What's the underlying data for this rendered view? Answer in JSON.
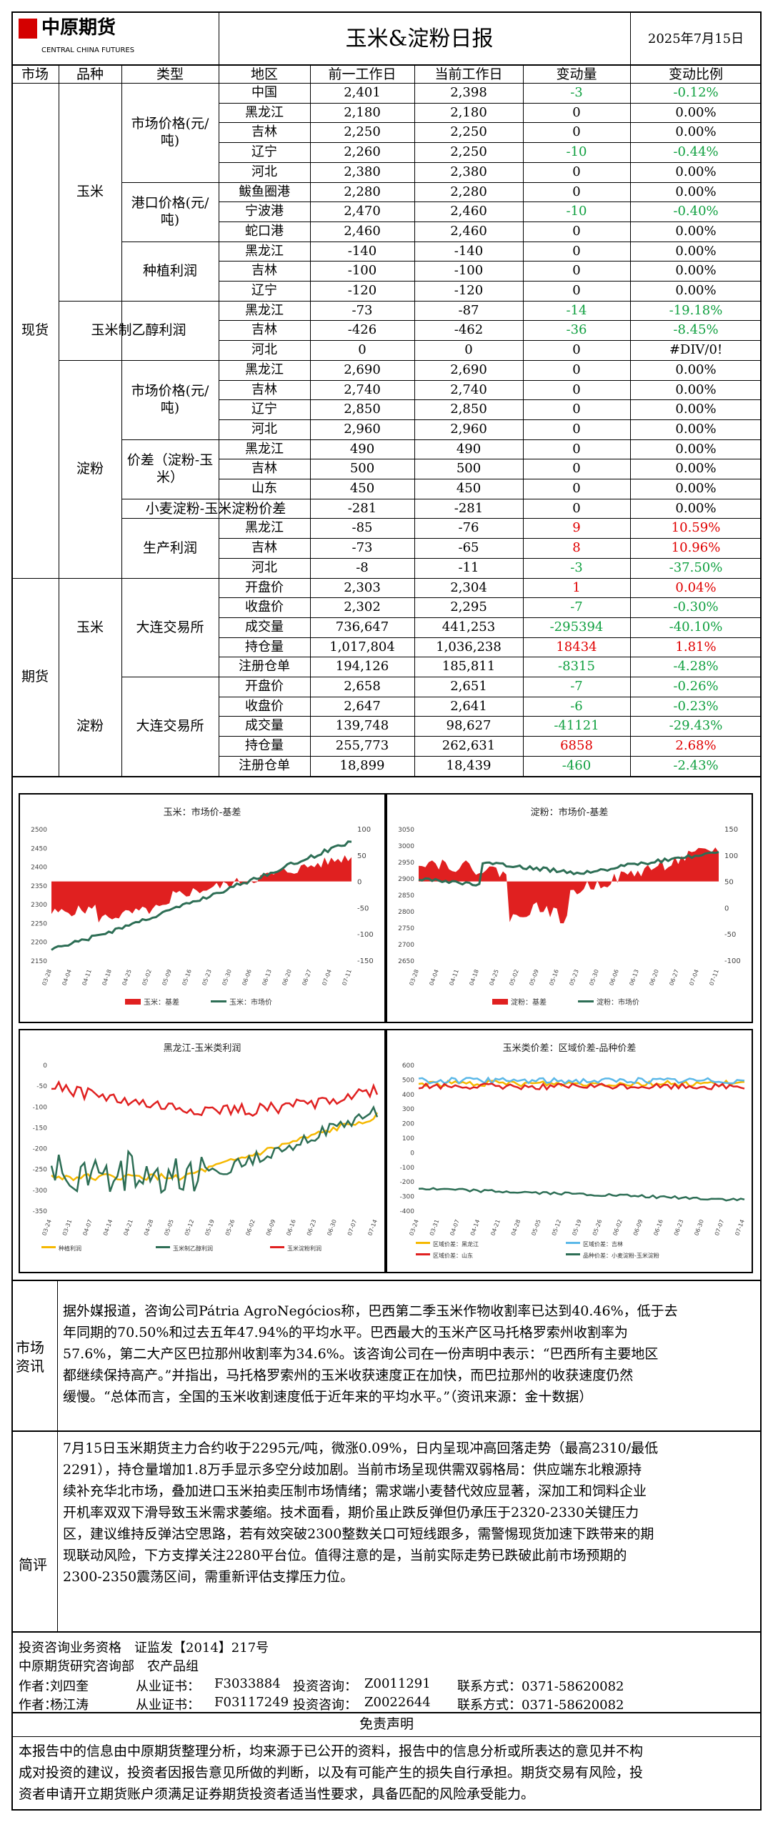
{
  "header": {
    "logo_cn": "中原期货",
    "logo_en": "CENTRAL CHINA FUTURES",
    "title": "玉米&淀粉日报",
    "date": "2025年7月15日"
  },
  "colhead": [
    "市场",
    "品种",
    "类型",
    "地区",
    "前一工作日",
    "当前工作日",
    "变动量",
    "变动比例"
  ],
  "labels": {
    "spot": "现货",
    "futures": "期货",
    "corn": "玉米",
    "starch": "淀粉",
    "corn_mkt": "市场价格(元/吨)",
    "corn_port": "港口价格(元/吨)",
    "corn_plant": "种植利润",
    "ethanol": "玉米制乙醇利润",
    "st_mkt": "市场价格(元/吨)",
    "st_spread": "价差（淀粉-玉米）",
    "wheat": "小麦淀粉-玉米淀粉价差",
    "prod": "生产利润",
    "dce": "大连交易所"
  },
  "rows": [
    {
      "r": "中国",
      "p": "2,401",
      "c": "2,398",
      "d": "-3",
      "pct": "-0.12%",
      "s": "g"
    },
    {
      "r": "黑龙江",
      "p": "2,180",
      "c": "2,180",
      "d": "0",
      "pct": "0.00%",
      "s": "n"
    },
    {
      "r": "吉林",
      "p": "2,250",
      "c": "2,250",
      "d": "0",
      "pct": "0.00%",
      "s": "n"
    },
    {
      "r": "辽宁",
      "p": "2,260",
      "c": "2,250",
      "d": "-10",
      "pct": "-0.44%",
      "s": "g"
    },
    {
      "r": "河北",
      "p": "2,380",
      "c": "2,380",
      "d": "0",
      "pct": "0.00%",
      "s": "n"
    },
    {
      "r": "鲅鱼圈港",
      "p": "2,280",
      "c": "2,280",
      "d": "0",
      "pct": "0.00%",
      "s": "n"
    },
    {
      "r": "宁波港",
      "p": "2,470",
      "c": "2,460",
      "d": "-10",
      "pct": "-0.40%",
      "s": "g"
    },
    {
      "r": "蛇口港",
      "p": "2,460",
      "c": "2,460",
      "d": "0",
      "pct": "0.00%",
      "s": "n"
    },
    {
      "r": "黑龙江",
      "p": "-140",
      "c": "-140",
      "d": "0",
      "pct": "0.00%",
      "s": "n"
    },
    {
      "r": "吉林",
      "p": "-100",
      "c": "-100",
      "d": "0",
      "pct": "0.00%",
      "s": "n"
    },
    {
      "r": "辽宁",
      "p": "-120",
      "c": "-120",
      "d": "0",
      "pct": "0.00%",
      "s": "n"
    },
    {
      "r": "黑龙江",
      "p": "-73",
      "c": "-87",
      "d": "-14",
      "pct": "-19.18%",
      "s": "g"
    },
    {
      "r": "吉林",
      "p": "-426",
      "c": "-462",
      "d": "-36",
      "pct": "-8.45%",
      "s": "g"
    },
    {
      "r": "河北",
      "p": "0",
      "c": "0",
      "d": "0",
      "pct": "#DIV/0!",
      "s": "n"
    },
    {
      "r": "黑龙江",
      "p": "2,690",
      "c": "2,690",
      "d": "0",
      "pct": "0.00%",
      "s": "n"
    },
    {
      "r": "吉林",
      "p": "2,740",
      "c": "2,740",
      "d": "0",
      "pct": "0.00%",
      "s": "n"
    },
    {
      "r": "辽宁",
      "p": "2,850",
      "c": "2,850",
      "d": "0",
      "pct": "0.00%",
      "s": "n"
    },
    {
      "r": "河北",
      "p": "2,960",
      "c": "2,960",
      "d": "0",
      "pct": "0.00%",
      "s": "n"
    },
    {
      "r": "黑龙江",
      "p": "490",
      "c": "490",
      "d": "0",
      "pct": "0.00%",
      "s": "n"
    },
    {
      "r": "吉林",
      "p": "500",
      "c": "500",
      "d": "0",
      "pct": "0.00%",
      "s": "n"
    },
    {
      "r": "山东",
      "p": "450",
      "c": "450",
      "d": "0",
      "pct": "0.00%",
      "s": "n"
    },
    {
      "r": "",
      "p": "-281",
      "c": "-281",
      "d": "0",
      "pct": "0.00%",
      "s": "n"
    },
    {
      "r": "黑龙江",
      "p": "-85",
      "c": "-76",
      "d": "9",
      "pct": "10.59%",
      "s": "r"
    },
    {
      "r": "吉林",
      "p": "-73",
      "c": "-65",
      "d": "8",
      "pct": "10.96%",
      "s": "r"
    },
    {
      "r": "河北",
      "p": "-8",
      "c": "-11",
      "d": "-3",
      "pct": "-37.50%",
      "s": "g"
    },
    {
      "r": "开盘价",
      "p": "2,303",
      "c": "2,304",
      "d": "1",
      "pct": "0.04%",
      "s": "r"
    },
    {
      "r": "收盘价",
      "p": "2,302",
      "c": "2,295",
      "d": "-7",
      "pct": "-0.30%",
      "s": "g"
    },
    {
      "r": "成交量",
      "p": "736,647",
      "c": "441,253",
      "d": "-295394",
      "pct": "-40.10%",
      "s": "g"
    },
    {
      "r": "持仓量",
      "p": "1,017,804",
      "c": "1,036,238",
      "d": "18434",
      "pct": "1.81%",
      "s": "r"
    },
    {
      "r": "注册仓单",
      "p": "194,126",
      "c": "185,811",
      "d": "-8315",
      "pct": "-4.28%",
      "s": "g"
    },
    {
      "r": "开盘价",
      "p": "2,658",
      "c": "2,651",
      "d": "-7",
      "pct": "-0.26%",
      "s": "g"
    },
    {
      "r": "收盘价",
      "p": "2,647",
      "c": "2,641",
      "d": "-6",
      "pct": "-0.23%",
      "s": "g"
    },
    {
      "r": "成交量",
      "p": "139,748",
      "c": "98,627",
      "d": "-41121",
      "pct": "-29.43%",
      "s": "g"
    },
    {
      "r": "持仓量",
      "p": "255,773",
      "c": "262,631",
      "d": "6858",
      "pct": "2.68%",
      "s": "r"
    },
    {
      "r": "注册仓单",
      "p": "18,899",
      "c": "18,439",
      "d": "-460",
      "pct": "-2.43%",
      "s": "g"
    }
  ],
  "charts": [
    {
      "title": "玉米：市场价-基差",
      "legend": [
        "玉米：基差",
        "玉米：市场价"
      ],
      "yl": [
        "2500",
        "2450",
        "2400",
        "2350",
        "2300",
        "2250",
        "2200",
        "2150"
      ],
      "yr": [
        "100",
        "50",
        "0",
        "-50",
        "-100",
        "-150"
      ],
      "x": [
        "03-28",
        "04-04",
        "04-11",
        "04-18",
        "04-25",
        "05-02",
        "05-09",
        "05-16",
        "05-23",
        "05-30",
        "06-06",
        "06-13",
        "06-20",
        "06-27",
        "07-04",
        "07-11"
      ]
    },
    {
      "title": "淀粉：市场价-基差",
      "legend": [
        "淀粉：基差",
        "淀粉：市场价"
      ],
      "yl": [
        "3050",
        "3000",
        "2950",
        "2900",
        "2850",
        "2800",
        "2750",
        "2700",
        "2650"
      ],
      "yr": [
        "150",
        "100",
        "50",
        "0",
        "-50",
        "-100"
      ],
      "x": [
        "03-28",
        "04-04",
        "04-11",
        "04-18",
        "04-25",
        "05-02",
        "05-09",
        "05-16",
        "05-23",
        "05-30",
        "06-06",
        "06-13",
        "06-20",
        "06-27",
        "07-04",
        "07-11"
      ]
    },
    {
      "title": "黑龙江-玉米类利润",
      "legend": [
        "种植利润",
        "玉米制乙醇利润",
        "玉米淀粉利润"
      ],
      "yl": [
        "0",
        "-50",
        "-100",
        "-150",
        "-200",
        "-250",
        "-300",
        "-350"
      ],
      "x": [
        "03-24",
        "03-31",
        "04-07",
        "04-14",
        "04-21",
        "04-28",
        "05-05",
        "05-12",
        "05-19",
        "05-26",
        "06-02",
        "06-09",
        "06-16",
        "06-23",
        "06-30",
        "07-07",
        "07-14"
      ]
    },
    {
      "title": "玉米类价差：区域价差-品种价差",
      "legend": [
        "区域价差：黑龙江",
        "区域价差：吉林",
        "区域价差：山东",
        "品种价差：小麦淀粉-玉米淀粉"
      ],
      "yl": [
        "600",
        "500",
        "400",
        "300",
        "200",
        "100",
        "0",
        "-100",
        "-200",
        "-300",
        "-400"
      ],
      "x": [
        "03-24",
        "03-31",
        "04-07",
        "04-14",
        "04-21",
        "04-28",
        "05-05",
        "05-12",
        "05-19",
        "05-26",
        "06-02",
        "06-09",
        "06-16",
        "06-23",
        "06-30",
        "07-07",
        "07-14"
      ]
    }
  ],
  "info": {
    "label": "市场资讯",
    "lines": [
      "据外媒报道，咨询公司Pátria AgroNegócios称，巴西第二季玉米作物收割率已达到40.46%，低于去",
      "年同期的70.50%和过去五年47.94%的平均水平。巴西最大的玉米产区马托格罗索州收割率为",
      "57.6%，第二大产区巴拉那州收割率为34.6%。该咨询公司在一份声明中表示：“巴西所有主要地区",
      "都继续保持高产。”并指出，马托格罗索州的玉米收获速度正在加快，而巴拉那州的收获速度仍然",
      "缓慢。“总体而言，全国的玉米收割速度低于近年来的平均水平。”（资讯来源：金十数据）"
    ]
  },
  "comment": {
    "label": "简评",
    "lines": [
      "7月15日玉米期货主力合约收于2295元/吨，微涨0.09%，日内呈现冲高回落走势（最高2310/最低",
      "2291），持仓量增加1.8万手显示多空分歧加剧。当前市场呈现供需双弱格局：供应端东北粮源持",
      "续补充华北市场，叠加进口玉米拍卖压制市场情绪；需求端小麦替代效应显著，深加工和饲料企业",
      "开机率双双下滑导致玉米需求萎缩。技术面看，期价虽止跌反弹但仍承压于2320-2330关键压力",
      "区，建议维持反弹沽空思路，若有效突破2300整数关口可短线跟多，需警惕现货加速下跌带来的期",
      "现联动风险，下方支撑关注2280平台位。值得注意的是，当前实际走势已跌破此前市场预期的",
      "2300-2350震荡区间，需重新评估支撑压力位。"
    ]
  },
  "footer": {
    "l1": "投资咨询业务资格　证监发【2014】217号",
    "l2": "中原期货研究咨询部　农产品组",
    "a1": [
      "作者：",
      "刘四奎",
      "从业证书：",
      "F3033884",
      "投资咨询：",
      "Z0011291",
      "联系方式：0371-58620082"
    ],
    "a2": [
      "作者：",
      "杨江涛",
      "从业证书：",
      "F03117249",
      "投资咨询：",
      "Z0022644",
      "联系方式：0371-58620082"
    ]
  },
  "disclaimer": {
    "title": "免责声明",
    "lines": [
      "本报告中的信息由中原期货整理分析，均来源于已公开的资料，报告中的信息分析或所表达的意见并不构",
      "成对投资的建议，投资者因报告意见所做的判断，以及有可能产生的损失自行承担。期货交易有风险，投",
      "资者申请开立期货账户须满足证券期货投资者适当性要求，具备匹配的风险承受能力。"
    ]
  }
}
